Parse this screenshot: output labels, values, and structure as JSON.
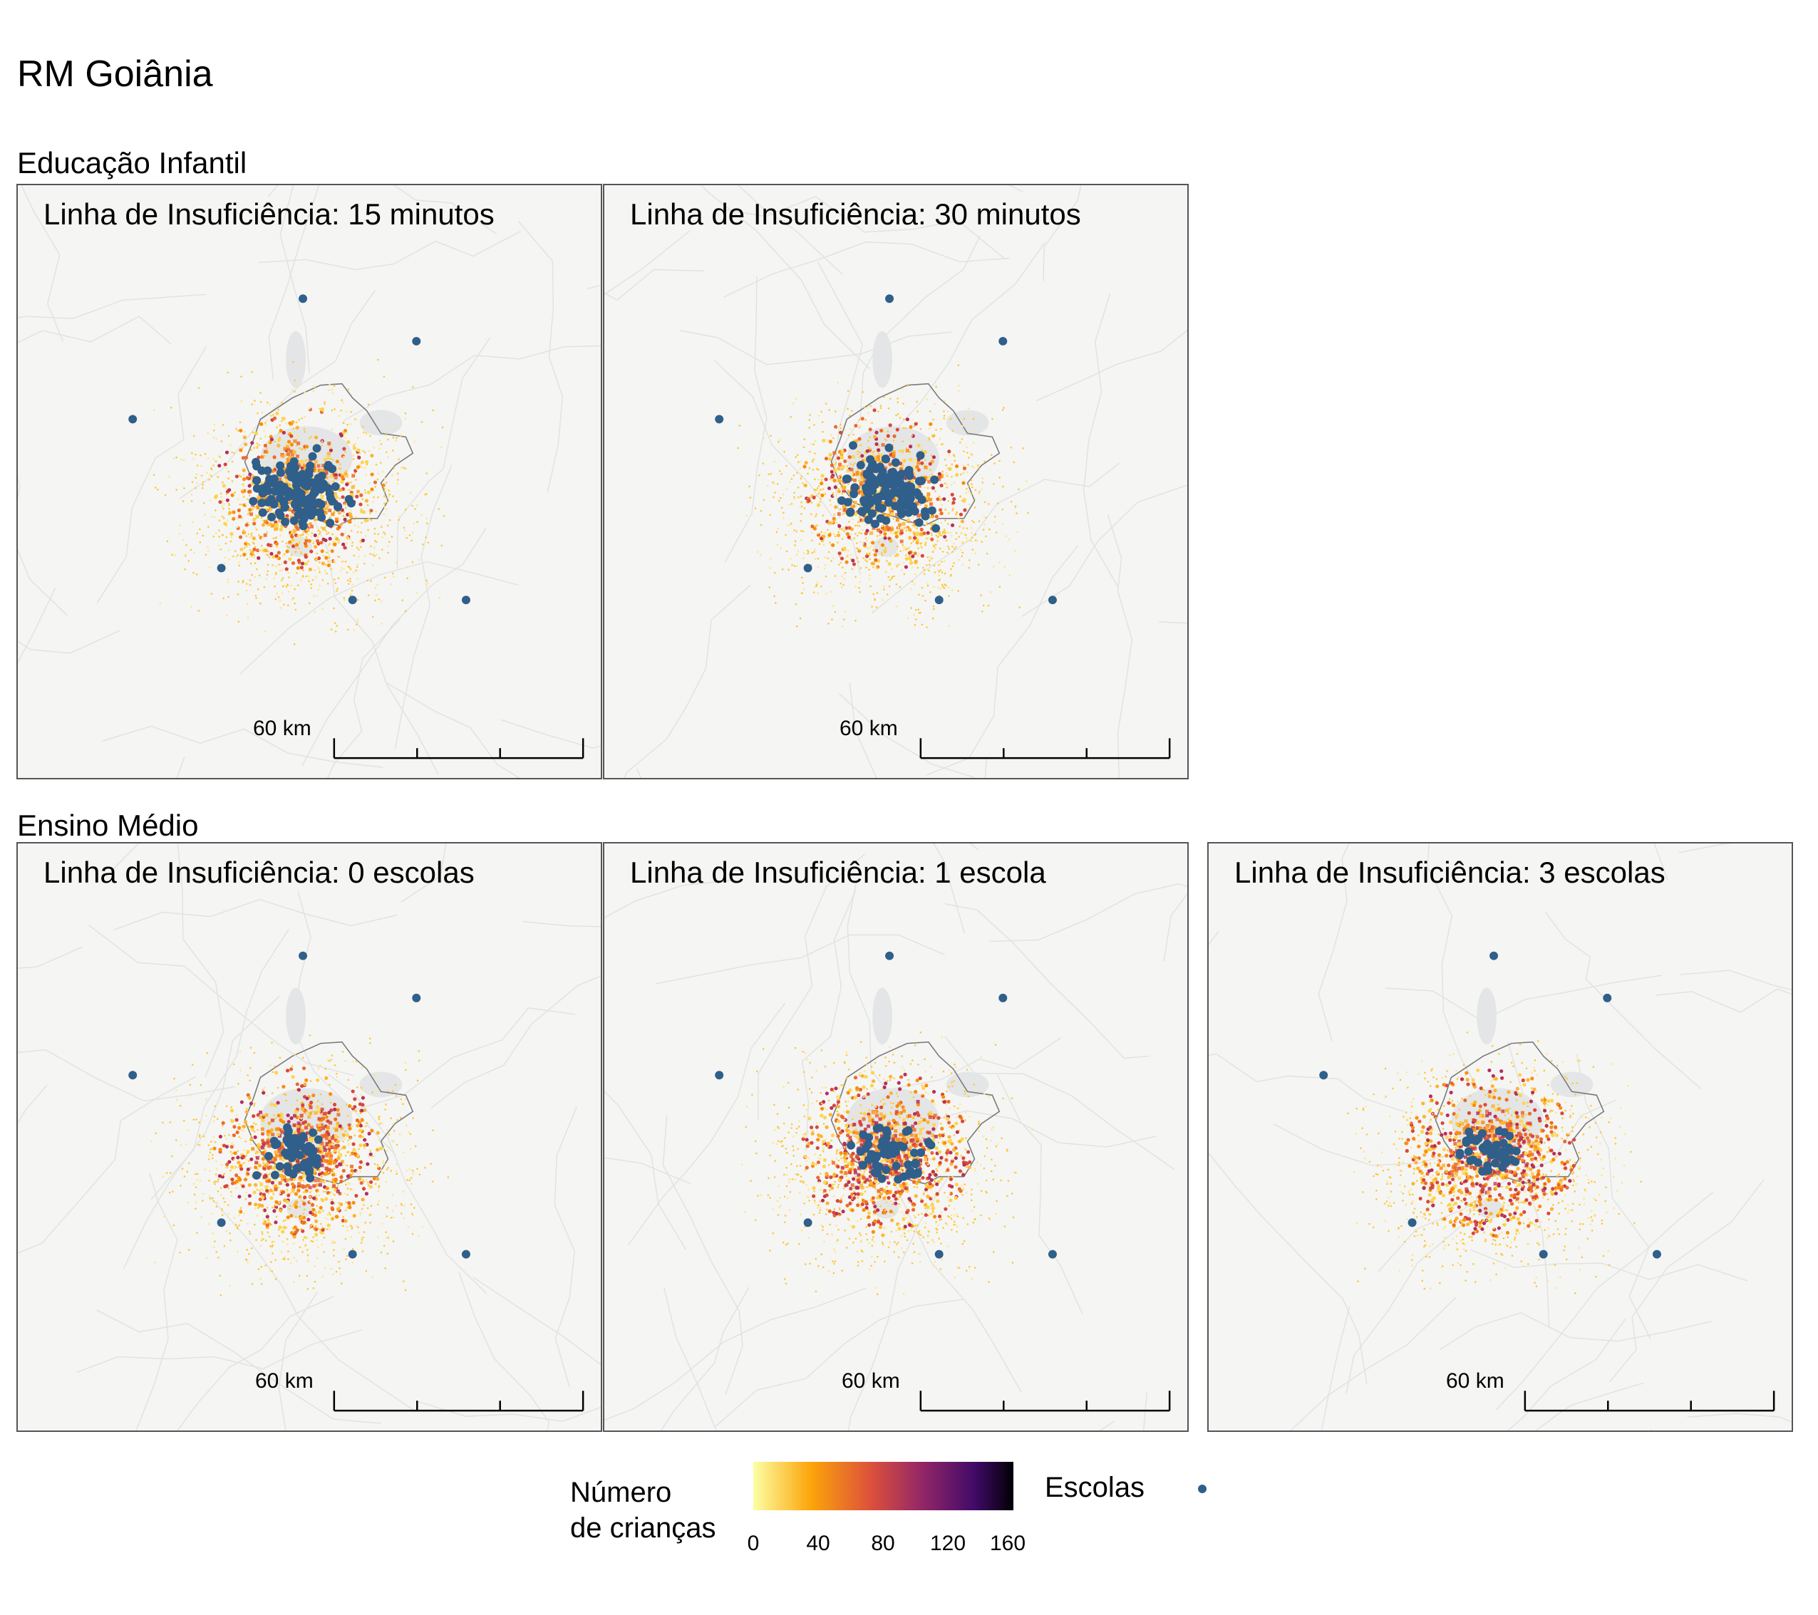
{
  "title": "RM Goiânia",
  "sections": {
    "infantil": "Educação Infantil",
    "medio": "Ensino Médio"
  },
  "panels": [
    {
      "title": "Linha de Insuficiência: 15 minutos",
      "scale_label": "60 km"
    },
    {
      "title": "Linha de Insuficiência: 30 minutos",
      "scale_label": "60 km"
    },
    {
      "title": "Linha de Insuficiência: 0 escolas",
      "scale_label": "60 km"
    },
    {
      "title": "Linha de Insuficiência: 1 escola",
      "scale_label": "60 km"
    },
    {
      "title": "Linha de Insuficiência: 3 escolas",
      "scale_label": "60 km"
    }
  ],
  "legend": {
    "fill_title_line1": "Número",
    "fill_title_line2": "de crianças",
    "ticks": [
      "0",
      "40",
      "80",
      "120",
      "160"
    ],
    "points_title": "Escolas"
  },
  "colors": {
    "school_point": "#2f5f8a",
    "scale_low": "#fcffa4",
    "scale_high": "#000004",
    "map_background": "#f5f5f4",
    "metro_boundary": "#7a7a7a"
  }
}
